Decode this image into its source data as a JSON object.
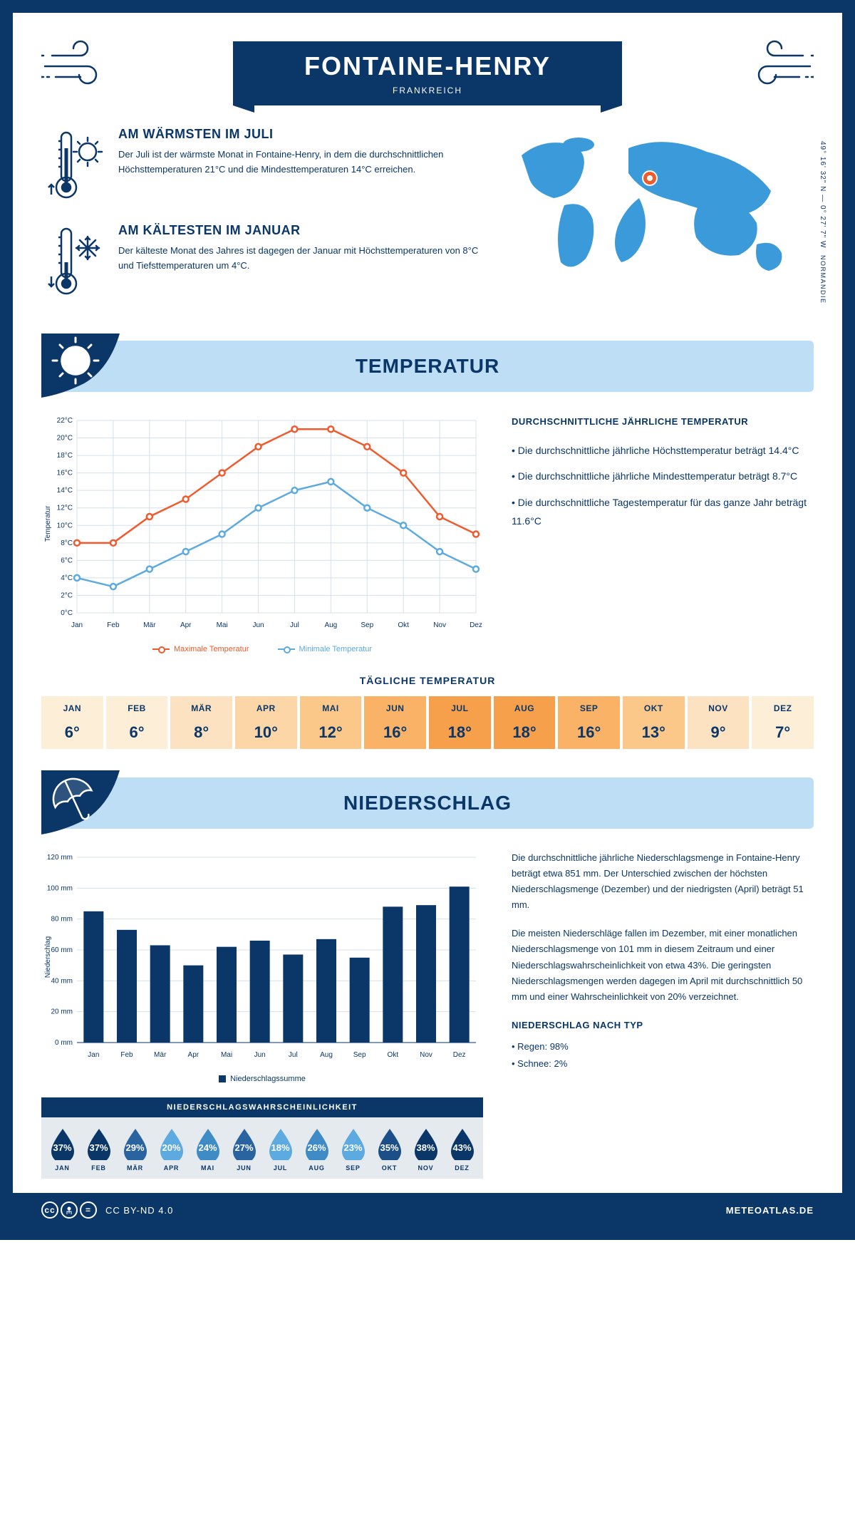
{
  "header": {
    "city": "FONTAINE-HENRY",
    "country": "FRANKREICH",
    "coords": "49° 16' 32\" N — 0° 27' 7\" W",
    "region": "NORMANDIE"
  },
  "intro": {
    "warm": {
      "title": "AM WÄRMSTEN IM JULI",
      "text": "Der Juli ist der wärmste Monat in Fontaine-Henry, in dem die durchschnittlichen Höchsttemperaturen 21°C und die Mindesttemperaturen 14°C erreichen."
    },
    "cold": {
      "title": "AM KÄLTESTEN IM JANUAR",
      "text": "Der kälteste Monat des Jahres ist dagegen der Januar mit Höchsttemperaturen von 8°C und Tiefsttemperaturen um 4°C."
    }
  },
  "temp_section": {
    "title": "TEMPERATUR",
    "chart": {
      "type": "line",
      "months": [
        "Jan",
        "Feb",
        "Mär",
        "Apr",
        "Mai",
        "Jun",
        "Jul",
        "Aug",
        "Sep",
        "Okt",
        "Nov",
        "Dez"
      ],
      "max_series": [
        8,
        8,
        11,
        13,
        16,
        19,
        21,
        21,
        19,
        16,
        11,
        9
      ],
      "min_series": [
        4,
        3,
        5,
        7,
        9,
        12,
        14,
        15,
        12,
        10,
        7,
        5
      ],
      "max_color": "#ef5a2e",
      "min_color": "#5daae0",
      "ylim": [
        0,
        22
      ],
      "ytick_step": 2,
      "y_label": "Temperatur",
      "y_suffix": "°C",
      "grid_color": "#d5e0ea",
      "legend_max": "Maximale Temperatur",
      "legend_min": "Minimale Temperatur"
    },
    "text": {
      "title": "DURCHSCHNITTLICHE JÄHRLICHE TEMPERATUR",
      "p1": "• Die durchschnittliche jährliche Höchsttemperatur beträgt 14.4°C",
      "p2": "• Die durchschnittliche jährliche Mindesttemperatur beträgt 8.7°C",
      "p3": "• Die durchschnittliche Tagestemperatur für das ganze Jahr beträgt 11.6°C"
    },
    "daily": {
      "title": "TÄGLICHE TEMPERATUR",
      "months": [
        "JAN",
        "FEB",
        "MÄR",
        "APR",
        "MAI",
        "JUN",
        "JUL",
        "AUG",
        "SEP",
        "OKT",
        "NOV",
        "DEZ"
      ],
      "values": [
        "6°",
        "6°",
        "8°",
        "10°",
        "12°",
        "16°",
        "18°",
        "18°",
        "16°",
        "13°",
        "9°",
        "7°"
      ],
      "colors": [
        "#fdeed8",
        "#fdeed8",
        "#fce2c0",
        "#fcd6a7",
        "#fbc88a",
        "#f9b266",
        "#f7a04c",
        "#f7a04c",
        "#f9b266",
        "#fbc88a",
        "#fce2c0",
        "#fdeed8"
      ]
    }
  },
  "precip_section": {
    "title": "NIEDERSCHLAG",
    "chart": {
      "type": "bar",
      "months": [
        "Jan",
        "Feb",
        "Mär",
        "Apr",
        "Mai",
        "Jun",
        "Jul",
        "Aug",
        "Sep",
        "Okt",
        "Nov",
        "Dez"
      ],
      "values": [
        85,
        73,
        63,
        50,
        62,
        66,
        57,
        67,
        55,
        88,
        89,
        101
      ],
      "bar_color": "#0a3668",
      "ylim": [
        0,
        120
      ],
      "ytick_step": 20,
      "y_label": "Niederschlag",
      "y_suffix": " mm",
      "grid_color": "#d5e0ea",
      "legend": "Niederschlagssumme"
    },
    "text": {
      "p1": "Die durchschnittliche jährliche Niederschlagsmenge in Fontaine-Henry beträgt etwa 851 mm. Der Unterschied zwischen der höchsten Niederschlagsmenge (Dezember) und der niedrigsten (April) beträgt 51 mm.",
      "p2": "Die meisten Niederschläge fallen im Dezember, mit einer monatlichen Niederschlagsmenge von 101 mm in diesem Zeitraum und einer Niederschlagswahrscheinlichkeit von etwa 43%. Die geringsten Niederschlagsmengen werden dagegen im April mit durchschnittlich 50 mm und einer Wahrscheinlichkeit von 20% verzeichnet.",
      "type_title": "NIEDERSCHLAG NACH TYP",
      "rain": "• Regen: 98%",
      "snow": "• Schnee: 2%"
    },
    "prob": {
      "title": "NIEDERSCHLAGSWAHRSCHEINLICHKEIT",
      "months": [
        "JAN",
        "FEB",
        "MÄR",
        "APR",
        "MAI",
        "JUN",
        "JUL",
        "AUG",
        "SEP",
        "OKT",
        "NOV",
        "DEZ"
      ],
      "values": [
        "37%",
        "37%",
        "29%",
        "20%",
        "24%",
        "27%",
        "18%",
        "26%",
        "23%",
        "35%",
        "38%",
        "43%"
      ],
      "colors": [
        "#0a3668",
        "#0a3668",
        "#2964a0",
        "#5daae0",
        "#3f8bc5",
        "#2964a0",
        "#5daae0",
        "#3f8bc5",
        "#5daae0",
        "#1c4f87",
        "#0a3668",
        "#0a3668"
      ]
    }
  },
  "footer": {
    "license": "CC BY-ND 4.0",
    "site": "METEOATLAS.DE"
  }
}
